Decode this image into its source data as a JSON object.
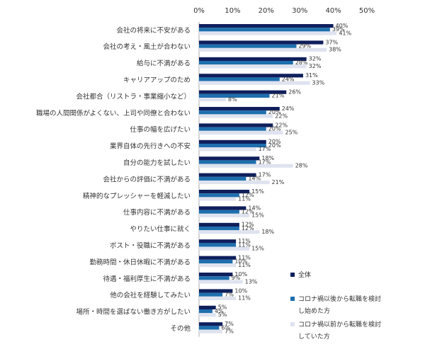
{
  "chart_data": {
    "type": "bar",
    "orientation": "horizontal",
    "title": "",
    "xlabel": "",
    "ylabel": "",
    "xlim": [
      0,
      50
    ],
    "ticks": [
      "0%",
      "10%",
      "20%",
      "30%",
      "40%",
      "50%"
    ],
    "tick_values": [
      0,
      10,
      20,
      30,
      40,
      50
    ],
    "axis_position": "top",
    "grid": false,
    "legend_position": "right-bottom",
    "categories": [
      "会社の将来に不安がある",
      "会社の考え・風土が合わない",
      "給与に不満がある",
      "キャリアアップのため",
      "会社都合（リストラ・事業縮小など）",
      "職場の人間関係がよくない、上司や同僚と合わない",
      "仕事の幅を広げたい",
      "業界自体の先行きへの不安",
      "自分の能力を試したい",
      "会社からの評価に不満がある",
      "精神的なプレッシャーを軽減したい",
      "仕事内容に不満がある",
      "やりたい仕事に就く",
      "ポスト・役職に不満がある",
      "勤務時間・休日休暇に不満がある",
      "待遇・福利厚生に不満がある",
      "他の会社を経験してみたい",
      "場所・時間を選ばない働き方がしたい",
      "その他"
    ],
    "series": [
      {
        "name": "全体",
        "color": "#0f1f5c",
        "values": [
          40,
          37,
          32,
          31,
          26,
          24,
          22,
          20,
          18,
          17,
          15,
          14,
          12,
          11,
          11,
          10,
          10,
          5,
          7
        ]
      },
      {
        "name": "コロナ禍以後から転職を検討し始めた方",
        "color": "#1e6fae",
        "values": [
          39,
          29,
          28,
          24,
          21,
          20,
          20,
          20,
          17,
          14,
          12,
          12,
          12,
          11,
          10,
          9,
          7,
          4,
          6
        ]
      },
      {
        "name": "コロナ禍以前から転職を検討していた方",
        "color": "#dfe3ef",
        "values": [
          41,
          38,
          32,
          33,
          8,
          22,
          25,
          17,
          28,
          21,
          11,
          15,
          18,
          15,
          11,
          13,
          11,
          5,
          7
        ]
      }
    ],
    "legend": [
      {
        "lines": [
          "全体"
        ]
      },
      {
        "lines": [
          "コロナ禍以後から転職を検討",
          "し始めた方"
        ]
      },
      {
        "lines": [
          "コロナ禍以前から転職を検討",
          "していた方"
        ]
      }
    ]
  }
}
